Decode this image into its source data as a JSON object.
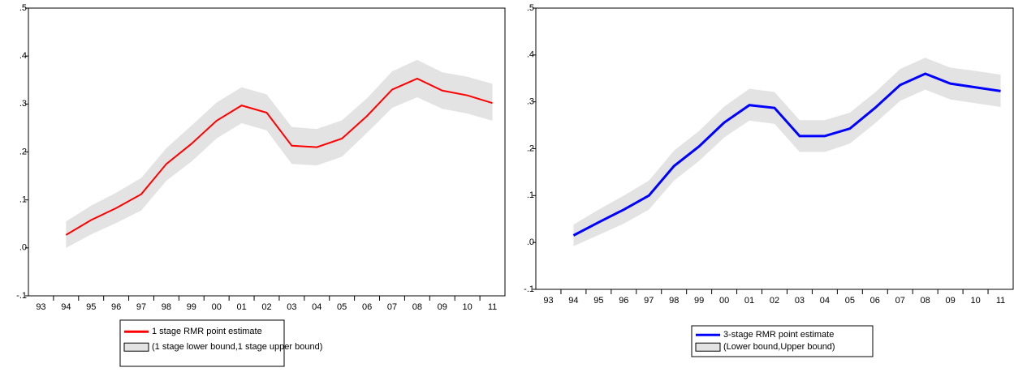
{
  "chart_data": [
    {
      "type": "line",
      "categories": [
        "93",
        "94",
        "95",
        "96",
        "97",
        "98",
        "99",
        "00",
        "01",
        "02",
        "03",
        "04",
        "05",
        "06",
        "07",
        "08",
        "09",
        "10",
        "11"
      ],
      "ylim": [
        -0.1,
        0.5
      ],
      "yticks": [
        {
          "value": 0.5,
          "label": ".5"
        },
        {
          "value": 0.4,
          "label": ".4"
        },
        {
          "value": 0.3,
          "label": ".3"
        },
        {
          "value": 0.2,
          "label": ".2"
        },
        {
          "value": 0.1,
          "label": ".1"
        },
        {
          "value": 0,
          "label": ".0"
        },
        {
          "value": -0.1,
          "label": "-.1"
        }
      ],
      "series": [
        {
          "name": "1 stage RMR point estimate",
          "color": "#ff0000",
          "values": [
            null,
            0.027,
            0.058,
            0.083,
            0.112,
            0.175,
            0.217,
            0.265,
            0.297,
            0.282,
            0.213,
            0.21,
            0.228,
            0.275,
            0.33,
            0.353,
            0.328,
            0.318,
            0.302
          ]
        }
      ],
      "band": {
        "name": "(1 stage lower bound,1 stage upper bound)",
        "color": "#e3e3e3",
        "lower": [
          null,
          0.0,
          0.028,
          0.052,
          0.078,
          0.14,
          0.18,
          0.228,
          0.26,
          0.245,
          0.175,
          0.172,
          0.19,
          0.24,
          0.292,
          0.314,
          0.29,
          0.28,
          0.265
        ],
        "upper": [
          null,
          0.055,
          0.088,
          0.115,
          0.146,
          0.208,
          0.255,
          0.303,
          0.335,
          0.32,
          0.252,
          0.248,
          0.266,
          0.312,
          0.368,
          0.392,
          0.366,
          0.357,
          0.342
        ]
      }
    },
    {
      "type": "line",
      "categories": [
        "93",
        "94",
        "95",
        "96",
        "97",
        "98",
        "99",
        "00",
        "01",
        "02",
        "03",
        "04",
        "05",
        "06",
        "07",
        "08",
        "09",
        "10",
        "11"
      ],
      "ylim": [
        -0.1,
        0.5
      ],
      "yticks": [
        {
          "value": 0.5,
          "label": ".5"
        },
        {
          "value": 0.4,
          "label": ".4"
        },
        {
          "value": 0.3,
          "label": ".3"
        },
        {
          "value": 0.2,
          "label": ".2"
        },
        {
          "value": 0.1,
          "label": ".1"
        },
        {
          "value": 0,
          "label": ".0"
        },
        {
          "value": -0.1,
          "label": "-.1"
        }
      ],
      "series": [
        {
          "name": "3-stage RMR point estimate",
          "color": "#0000ff",
          "values": [
            null,
            0.015,
            0.043,
            0.07,
            0.1,
            0.163,
            0.205,
            0.256,
            0.293,
            0.287,
            0.227,
            0.227,
            0.243,
            0.287,
            0.336,
            0.36,
            0.339,
            0.331,
            0.323
          ]
        }
      ],
      "band": {
        "name": "(Lower bound,Upper bound)",
        "color": "#e3e3e3",
        "lower": [
          null,
          -0.008,
          0.016,
          0.04,
          0.07,
          0.132,
          0.174,
          0.224,
          0.26,
          0.253,
          0.193,
          0.193,
          0.211,
          0.254,
          0.302,
          0.326,
          0.305,
          0.297,
          0.289
        ],
        "upper": [
          null,
          0.038,
          0.07,
          0.1,
          0.132,
          0.196,
          0.238,
          0.29,
          0.328,
          0.321,
          0.261,
          0.261,
          0.277,
          0.32,
          0.37,
          0.394,
          0.373,
          0.366,
          0.358
        ]
      }
    }
  ]
}
